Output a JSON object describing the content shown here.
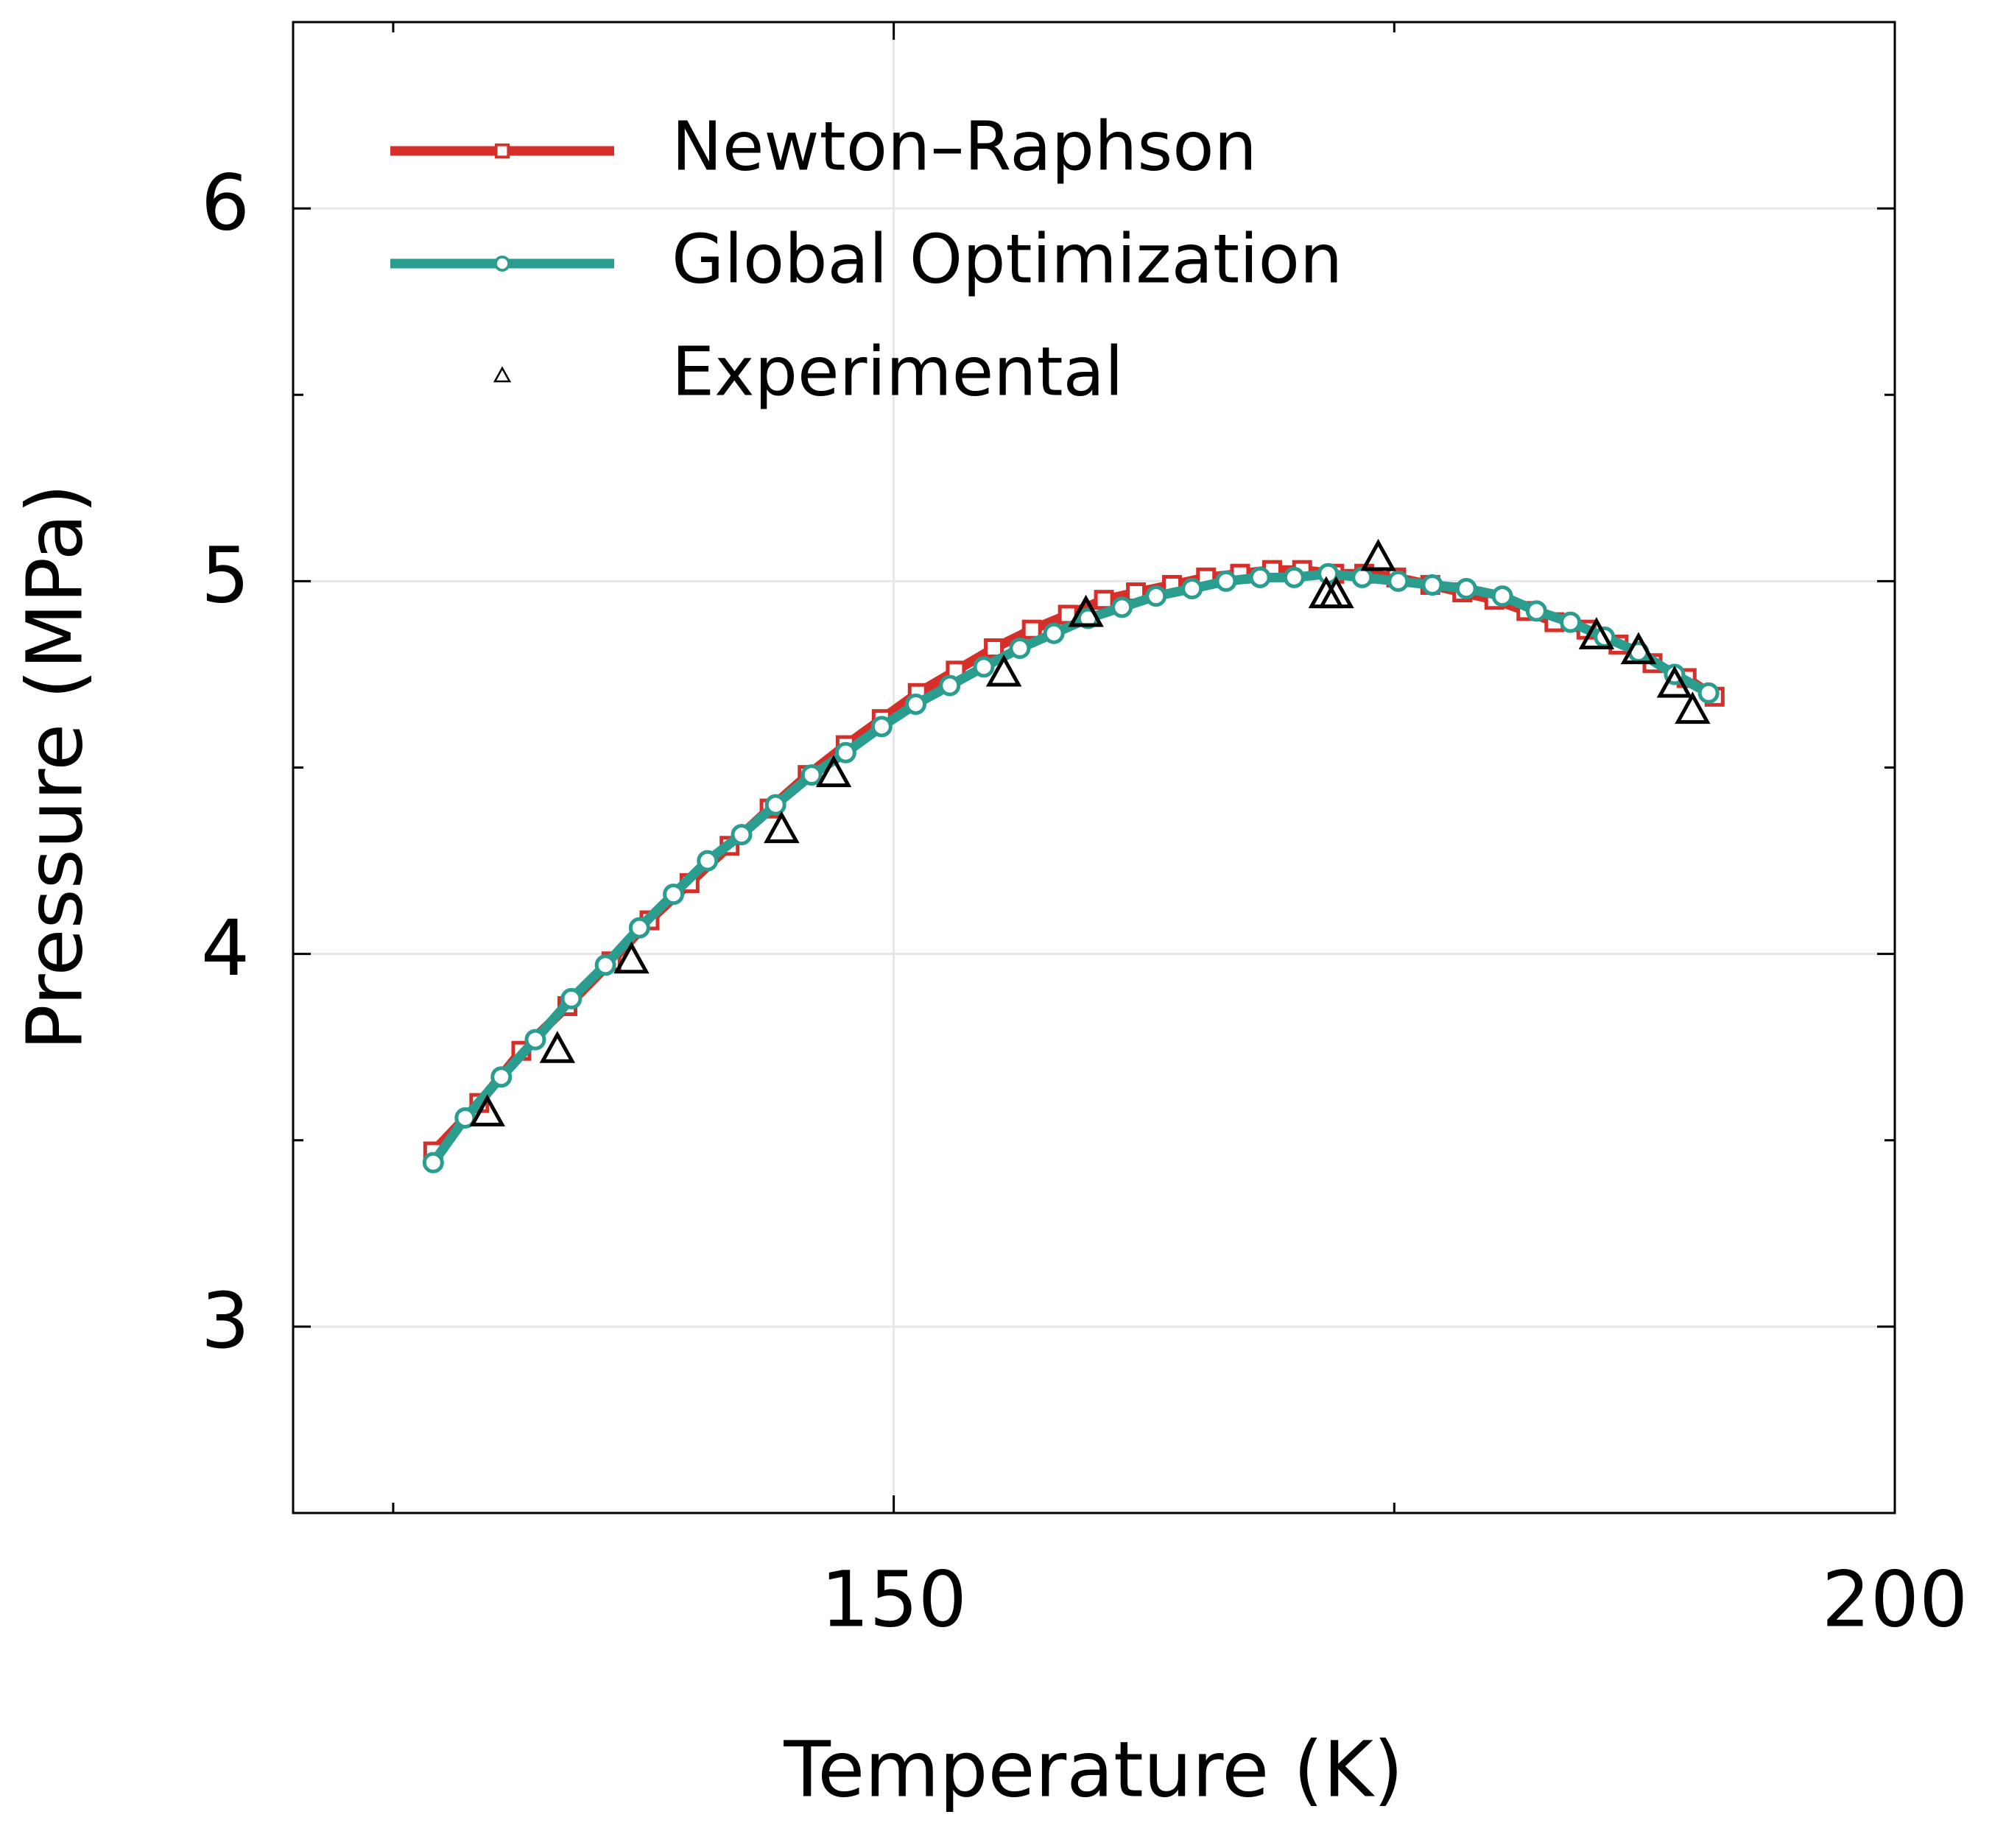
{
  "chart_data": {
    "type": "line",
    "x_label": "Temperature (K)",
    "y_label": "Pressure (MPa)",
    "xlim": [
      120,
      200
    ],
    "xticks": [
      150,
      200
    ],
    "xminor": [
      125,
      175
    ],
    "ylim": [
      2.5,
      6.5
    ],
    "yticks": [
      3,
      4,
      5,
      6
    ],
    "yminor": [
      3.5,
      4.5,
      5.5
    ],
    "grid": true,
    "legend": "upper left",
    "series": [
      {
        "name": "Newton–Raphson",
        "color": "#d62f2a",
        "marker": "square",
        "line": true,
        "x": [
          127.0,
          129.3,
          131.4,
          133.7,
          135.9,
          137.8,
          139.8,
          141.8,
          143.8,
          145.7,
          147.6,
          149.4,
          151.2,
          153.1,
          155.0,
          156.9,
          158.7,
          160.5,
          162.1,
          163.9,
          165.6,
          167.3,
          168.9,
          170.4,
          172.0,
          173.5,
          175.1,
          176.8,
          178.4,
          180.0,
          181.6,
          183.0,
          184.6,
          186.2,
          187.9,
          189.6,
          191.0
        ],
        "values": [
          3.47,
          3.6,
          3.74,
          3.86,
          3.98,
          4.09,
          4.19,
          4.29,
          4.39,
          4.48,
          4.56,
          4.63,
          4.7,
          4.76,
          4.82,
          4.87,
          4.91,
          4.95,
          4.97,
          4.99,
          5.01,
          5.02,
          5.03,
          5.03,
          5.02,
          5.02,
          5.01,
          4.99,
          4.97,
          4.95,
          4.92,
          4.89,
          4.87,
          4.83,
          4.78,
          4.74,
          4.69
        ]
      },
      {
        "name": "Global Optimization",
        "color": "#2a9d8f",
        "marker": "circle",
        "line": true,
        "x": [
          127.0,
          128.6,
          130.4,
          132.1,
          133.9,
          135.6,
          137.3,
          139.0,
          140.7,
          142.4,
          144.1,
          145.9,
          147.6,
          149.4,
          151.1,
          152.8,
          154.5,
          156.3,
          158.0,
          159.7,
          161.4,
          163.1,
          164.9,
          166.6,
          168.3,
          170.0,
          171.7,
          173.4,
          175.2,
          176.9,
          178.6,
          180.4,
          182.1,
          183.8,
          185.5,
          187.2,
          189.0,
          190.7
        ],
        "values": [
          3.44,
          3.56,
          3.67,
          3.77,
          3.88,
          3.97,
          4.07,
          4.16,
          4.25,
          4.32,
          4.4,
          4.48,
          4.54,
          4.61,
          4.67,
          4.72,
          4.77,
          4.82,
          4.86,
          4.9,
          4.93,
          4.96,
          4.98,
          5.0,
          5.01,
          5.01,
          5.02,
          5.01,
          5.0,
          4.99,
          4.98,
          4.96,
          4.92,
          4.89,
          4.85,
          4.81,
          4.75,
          4.7
        ]
      },
      {
        "name": "Experimental",
        "color": "#000000",
        "marker": "triangle",
        "line": false,
        "x": [
          129.7,
          133.2,
          136.9,
          144.4,
          147.0,
          155.5,
          159.6,
          171.6,
          172.1,
          174.2,
          185.1,
          187.2,
          189.0,
          189.9
        ],
        "values": [
          3.57,
          3.74,
          3.98,
          4.33,
          4.48,
          4.75,
          4.91,
          4.96,
          4.96,
          5.06,
          4.85,
          4.81,
          4.72,
          4.65
        ]
      }
    ]
  }
}
